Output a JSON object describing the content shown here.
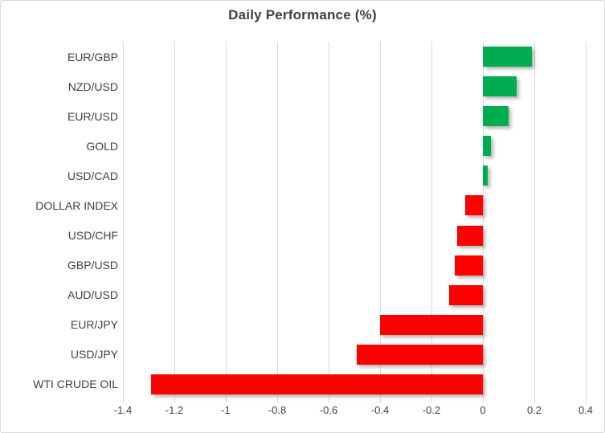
{
  "chart_data": {
    "type": "bar",
    "orientation": "horizontal",
    "title": "Daily Performance (%)",
    "categories": [
      "EUR/GBP",
      "NZD/USD",
      "EUR/USD",
      "GOLD",
      "USD/CAD",
      "DOLLAR INDEX",
      "USD/CHF",
      "GBP/USD",
      "AUD/USD",
      "EUR/JPY",
      "USD/JPY",
      "WTI CRUDE OIL"
    ],
    "values": [
      0.19,
      0.13,
      0.1,
      0.03,
      0.02,
      -0.07,
      -0.1,
      -0.11,
      -0.13,
      -0.4,
      -0.49,
      -1.29
    ],
    "xlim": [
      -1.4,
      0.4
    ],
    "x_ticks": [
      -1.4,
      -1.2,
      -1,
      -0.8,
      -0.6,
      -0.4,
      -0.2,
      0,
      0.2,
      0.4
    ],
    "x_tick_labels": [
      "-1.4",
      "-1.2",
      "-1",
      "-0.8",
      "-0.6",
      "-0.4",
      "-0.2",
      "0",
      "0.2",
      "0.4"
    ],
    "grid": true,
    "legend": false,
    "xlabel": "",
    "ylabel": "",
    "colors": {
      "positive": "#00AC50",
      "negative": "#FF0000",
      "gridline": "#D9D9D9",
      "text": "#404040",
      "title": "#3F3F3F",
      "border": "#D9D9D9"
    }
  }
}
